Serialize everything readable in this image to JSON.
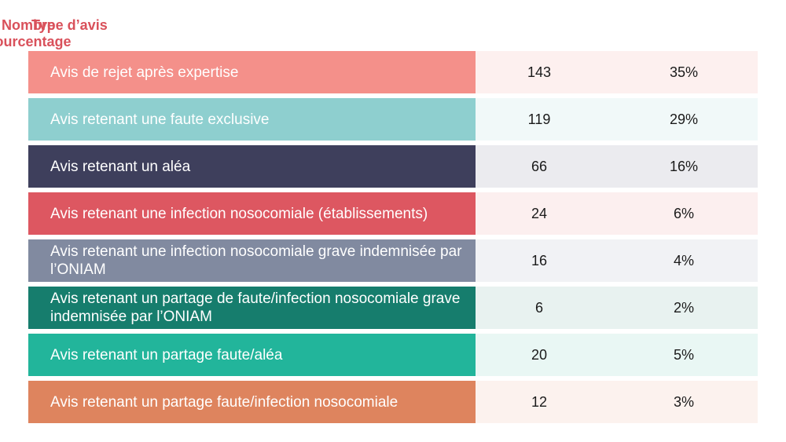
{
  "headers": {
    "type": "Type d’avis",
    "nombre": "Nombre",
    "pourcentage": "Pourcentage"
  },
  "colors": {
    "header_text": "#d9515b"
  },
  "chart_data": {
    "type": "table",
    "columns": [
      "Type d’avis",
      "Nombre",
      "Pourcentage"
    ],
    "rows": [
      {
        "label": "Avis de rejet après expertise",
        "nombre": "143",
        "pourcentage": "35%",
        "color": "#f4908a",
        "tint": "#fdf0ef"
      },
      {
        "label": "Avis retenant une faute exclusive",
        "nombre": "119",
        "pourcentage": "29%",
        "color": "#8ecfcf",
        "tint": "#f1f9f9"
      },
      {
        "label": "Avis retenant un aléa",
        "nombre": "66",
        "pourcentage": "16%",
        "color": "#3e3f5c",
        "tint": "#ebebef"
      },
      {
        "label": "Avis retenant une infection nosocomiale (établissements)",
        "nombre": "24",
        "pourcentage": "6%",
        "color": "#dd5761",
        "tint": "#fcefef"
      },
      {
        "label": "Avis retenant une infection nosocomiale grave indemnisée par l’ONIAM",
        "nombre": "16",
        "pourcentage": "4%",
        "color": "#818aa0",
        "tint": "#f1f2f5"
      },
      {
        "label": "Avis retenant un partage de faute/infection nosocomiale grave indemnisée par l’ONIAM",
        "nombre": "6",
        "pourcentage": "2%",
        "color": "#167d6d",
        "tint": "#e8f2f0"
      },
      {
        "label": "Avis retenant un partage faute/aléa",
        "nombre": "20",
        "pourcentage": "5%",
        "color": "#22b59b",
        "tint": "#e9f7f4"
      },
      {
        "label": "Avis retenant un partage faute/infection nosocomiale",
        "nombre": "12",
        "pourcentage": "3%",
        "color": "#de845e",
        "tint": "#fcf2ee"
      }
    ]
  }
}
